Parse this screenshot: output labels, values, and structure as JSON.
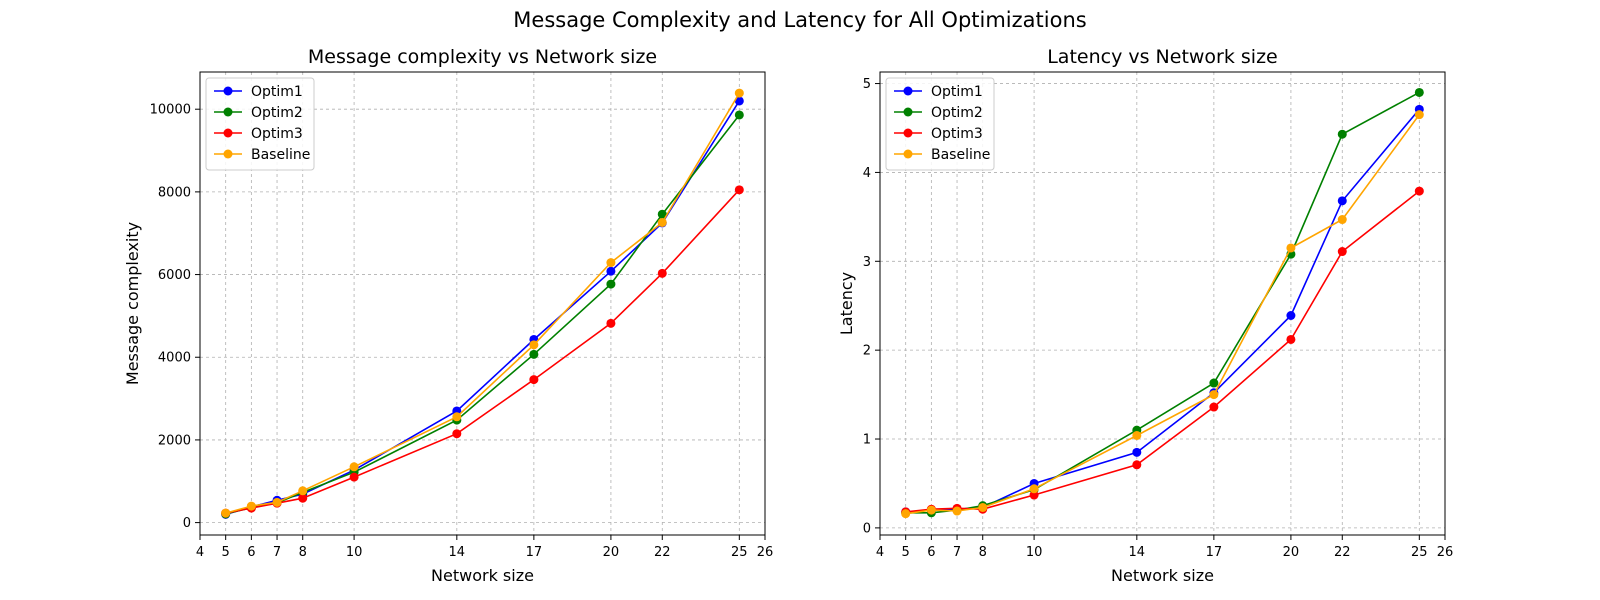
{
  "figure": {
    "title": "Message Complexity and Latency for All Optimizations"
  },
  "chart_data": [
    {
      "type": "line",
      "title": "Message complexity vs Network size",
      "xlabel": "Network size",
      "ylabel": "Message complexity",
      "xlim": [
        4,
        26
      ],
      "ylim": [
        -300,
        10900
      ],
      "xticks": [
        4,
        5,
        6,
        7,
        8,
        10,
        14,
        17,
        20,
        22,
        25,
        26
      ],
      "yticks": [
        0,
        2000,
        4000,
        6000,
        8000,
        10000
      ],
      "grid": true,
      "legend": "top-left",
      "x": [
        5,
        6,
        7,
        8,
        10,
        14,
        17,
        20,
        22,
        25
      ],
      "series": [
        {
          "name": "Optim1",
          "color": "#0000ff",
          "values": [
            200,
            380,
            540,
            690,
            1270,
            2700,
            4430,
            6080,
            7250,
            10200
          ]
        },
        {
          "name": "Optim2",
          "color": "#008000",
          "values": [
            210,
            360,
            480,
            730,
            1220,
            2480,
            4070,
            5770,
            7460,
            9860
          ]
        },
        {
          "name": "Optim3",
          "color": "#ff0000",
          "values": [
            230,
            350,
            470,
            590,
            1100,
            2150,
            3460,
            4820,
            6030,
            8050
          ]
        },
        {
          "name": "Baseline",
          "color": "#ffa500",
          "values": [
            230,
            400,
            490,
            770,
            1350,
            2560,
            4300,
            6290,
            7260,
            10390
          ]
        }
      ]
    },
    {
      "type": "line",
      "title": "Latency vs Network size",
      "xlabel": "Network size",
      "ylabel": "Latency",
      "xlim": [
        4,
        26
      ],
      "ylim": [
        -0.08,
        5.13
      ],
      "xticks": [
        4,
        5,
        6,
        7,
        8,
        10,
        14,
        17,
        20,
        22,
        25,
        26
      ],
      "yticks": [
        0,
        1,
        2,
        3,
        4,
        5
      ],
      "grid": true,
      "legend": "top-left",
      "x": [
        5,
        6,
        7,
        8,
        10,
        14,
        17,
        20,
        22,
        25
      ],
      "series": [
        {
          "name": "Optim1",
          "color": "#0000ff",
          "values": [
            0.18,
            0.2,
            0.21,
            0.23,
            0.5,
            0.85,
            1.52,
            2.39,
            3.68,
            4.71
          ]
        },
        {
          "name": "Optim2",
          "color": "#008000",
          "values": [
            0.17,
            0.17,
            0.2,
            0.25,
            0.43,
            1.1,
            1.63,
            3.08,
            4.43,
            4.9
          ]
        },
        {
          "name": "Optim3",
          "color": "#ff0000",
          "values": [
            0.18,
            0.21,
            0.22,
            0.21,
            0.37,
            0.71,
            1.36,
            2.12,
            3.11,
            3.79
          ]
        },
        {
          "name": "Baseline",
          "color": "#ffa500",
          "values": [
            0.16,
            0.2,
            0.19,
            0.23,
            0.44,
            1.04,
            1.5,
            3.15,
            3.47,
            4.65
          ]
        }
      ]
    }
  ]
}
